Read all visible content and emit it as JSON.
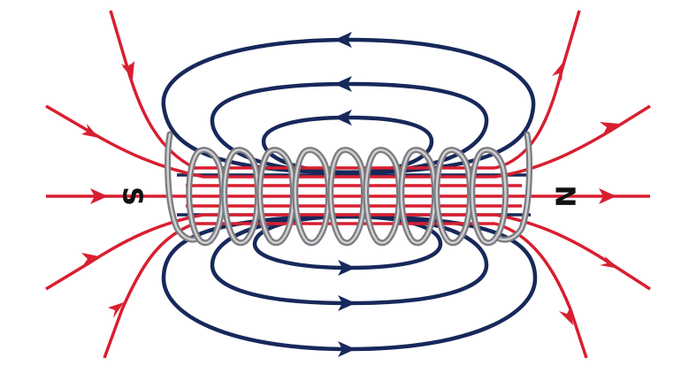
{
  "diagram": {
    "poles": {
      "south": {
        "label": "S"
      },
      "north": {
        "label": "N"
      }
    },
    "coil": {
      "turns": 9
    },
    "colors": {
      "external_field": "#d81f30",
      "internal_loops": "#17285a",
      "coil_wire": "#7b7b7f",
      "coil_highlight": "#cfcfd3",
      "label": "#111111"
    }
  }
}
